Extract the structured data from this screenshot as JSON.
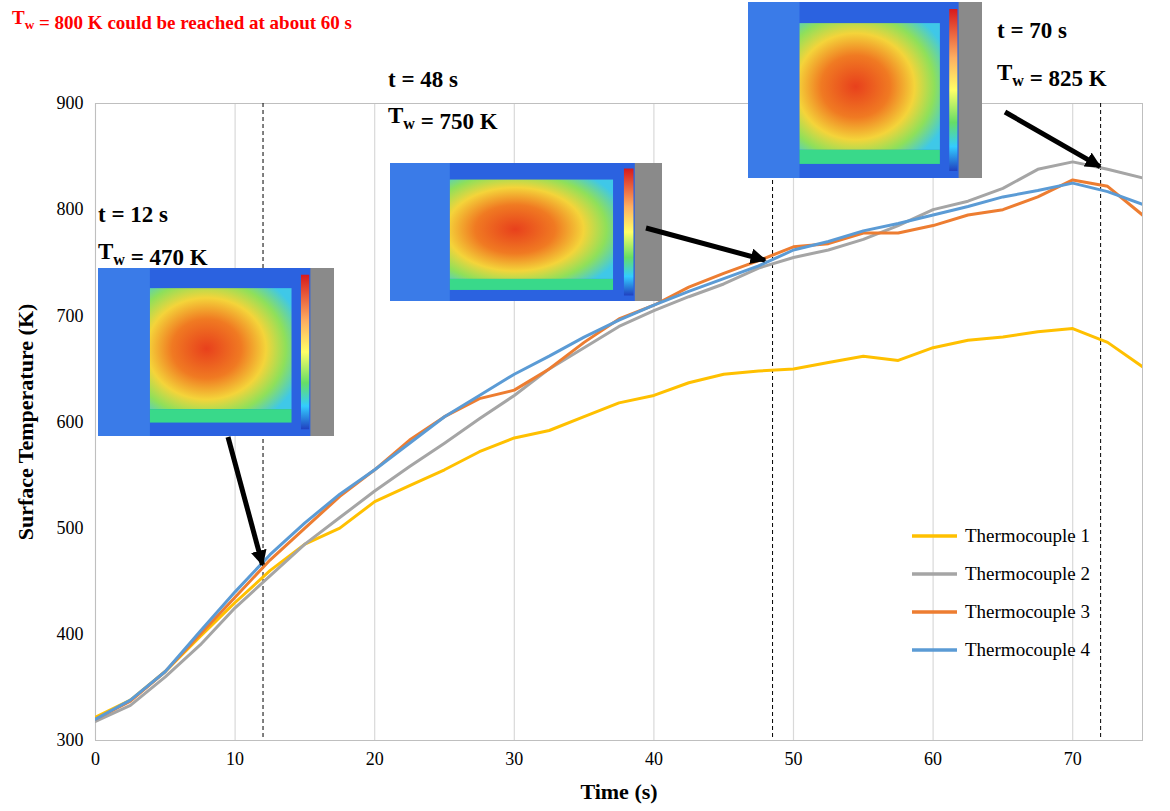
{
  "chart_data": {
    "type": "line",
    "title": "Tw = 800 K could be reached at about 60 s",
    "x_label": "Time (s)",
    "y_label": "Surface Temperature (K)",
    "xlim": [
      0,
      75
    ],
    "xticks": [
      0,
      10,
      20,
      30,
      40,
      50,
      60,
      70
    ],
    "ylim": [
      300,
      900
    ],
    "yticks": [
      300,
      400,
      500,
      600,
      700,
      800,
      900
    ],
    "grid": "x",
    "legend": "lower right",
    "x": [
      0,
      2.5,
      5,
      7.5,
      10,
      12.5,
      15,
      17.5,
      20,
      22.5,
      25,
      27.5,
      30,
      32.5,
      35,
      37.5,
      40,
      42.5,
      45,
      47.5,
      50,
      52.5,
      55,
      57.5,
      60,
      62.5,
      65,
      67.5,
      70,
      72.5,
      75
    ],
    "series": [
      {
        "name": "Thermocouple 1",
        "color": "#ffc000",
        "values": [
          322,
          338,
          365,
          398,
          430,
          460,
          485,
          500,
          525,
          540,
          555,
          572,
          585,
          592,
          605,
          618,
          625,
          637,
          645,
          648,
          650,
          656,
          662,
          658,
          670,
          677,
          680,
          685,
          688,
          675,
          652
        ]
      },
      {
        "name": "Thermocouple 2",
        "color": "#a5a5a5",
        "values": [
          318,
          333,
          360,
          390,
          425,
          455,
          485,
          510,
          535,
          558,
          580,
          603,
          625,
          650,
          670,
          690,
          705,
          718,
          730,
          745,
          755,
          762,
          772,
          785,
          800,
          808,
          820,
          838,
          845,
          838,
          830
        ]
      },
      {
        "name": "Thermocouple 3",
        "color": "#ed7d31",
        "values": [
          320,
          337,
          365,
          400,
          435,
          470,
          500,
          530,
          555,
          583,
          605,
          622,
          630,
          650,
          675,
          697,
          710,
          727,
          740,
          752,
          765,
          768,
          778,
          778,
          785,
          795,
          800,
          812,
          828,
          822,
          795
        ]
      },
      {
        "name": "Thermocouple 4",
        "color": "#5b9bd5",
        "values": [
          320,
          338,
          365,
          403,
          440,
          475,
          505,
          532,
          555,
          580,
          605,
          625,
          645,
          662,
          680,
          696,
          710,
          723,
          735,
          747,
          762,
          770,
          780,
          787,
          795,
          803,
          812,
          818,
          825,
          817,
          805
        ]
      }
    ],
    "vlines": [
      12,
      48.5,
      72
    ],
    "annotations": [
      {
        "text": [
          "t = 12 s",
          "Tw = 470 K"
        ],
        "x": 12,
        "y": 465
      },
      {
        "text": [
          "t = 48 s",
          "Tw = 750 K"
        ],
        "x": 48,
        "y": 752
      },
      {
        "text": [
          "t = 70 s",
          "Tw = 825 K"
        ],
        "x": 72,
        "y": 840
      }
    ]
  }
}
